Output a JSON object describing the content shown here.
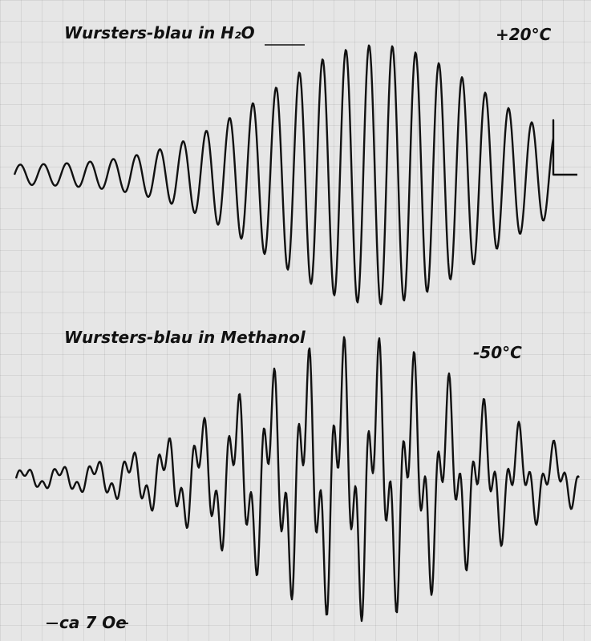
{
  "figure": {
    "spectra": [
      {
        "label": "Wursters-blau in H₂O",
        "temperature": "+20°C"
      },
      {
        "label": "Wursters-blau in Methanol",
        "temperature": "-50°C"
      }
    ],
    "scale_note": "ca 7 Oe"
  }
}
